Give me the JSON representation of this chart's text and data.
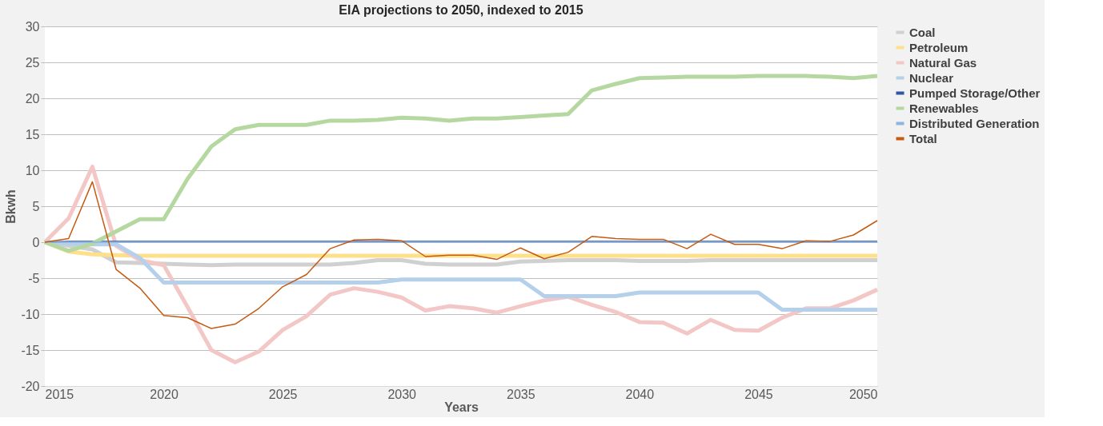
{
  "chart_data": {
    "type": "line",
    "title": "EIA projections to 2050, indexed to 2015",
    "xlabel": "Years",
    "ylabel": "Bkwh",
    "x": [
      2015,
      2016,
      2017,
      2018,
      2019,
      2020,
      2021,
      2022,
      2023,
      2024,
      2025,
      2026,
      2027,
      2028,
      2029,
      2030,
      2031,
      2032,
      2033,
      2034,
      2035,
      2036,
      2037,
      2038,
      2039,
      2040,
      2041,
      2042,
      2043,
      2044,
      2045,
      2046,
      2047,
      2048,
      2049,
      2050
    ],
    "series": [
      {
        "name": "Coal",
        "color": "#d0d0d0",
        "values": [
          0,
          -0.5,
          -1.0,
          -2.8,
          -2.9,
          -3.0,
          -3.1,
          -3.2,
          -3.1,
          -3.1,
          -3.1,
          -3.1,
          -3.1,
          -2.9,
          -2.5,
          -2.5,
          -3.0,
          -3.1,
          -3.1,
          -3.1,
          -2.7,
          -2.6,
          -2.5,
          -2.5,
          -2.5,
          -2.6,
          -2.6,
          -2.6,
          -2.5,
          -2.5,
          -2.5,
          -2.5,
          -2.5,
          -2.5,
          -2.5,
          -2.5
        ]
      },
      {
        "name": "Petroleum",
        "color": "#ffe08a",
        "values": [
          0,
          -1.3,
          -1.7,
          -1.8,
          -1.9,
          -1.9,
          -1.9,
          -1.9,
          -1.9,
          -1.9,
          -1.9,
          -1.9,
          -1.9,
          -1.9,
          -1.9,
          -1.9,
          -1.9,
          -1.9,
          -1.9,
          -1.9,
          -1.9,
          -1.9,
          -1.9,
          -1.9,
          -1.9,
          -1.9,
          -1.9,
          -1.9,
          -1.9,
          -1.9,
          -1.9,
          -1.9,
          -1.9,
          -1.9,
          -1.9,
          -1.9
        ]
      },
      {
        "name": "Natural Gas",
        "color": "#f4c7c7",
        "values": [
          0,
          3.3,
          10.5,
          -0.5,
          -2.5,
          -3.2,
          -9.0,
          -15.0,
          -16.7,
          -15.2,
          -12.2,
          -10.3,
          -7.3,
          -6.4,
          -6.9,
          -7.7,
          -9.5,
          -8.9,
          -9.2,
          -9.8,
          -8.9,
          -8.1,
          -7.6,
          -8.7,
          -9.7,
          -11.1,
          -11.2,
          -12.7,
          -10.8,
          -12.2,
          -12.3,
          -10.5,
          -9.2,
          -9.2,
          -8.1,
          -6.6
        ]
      },
      {
        "name": "Nuclear",
        "color": "#b4d0ea",
        "values": [
          0,
          -0.2,
          -0.3,
          -0.3,
          -2.2,
          -5.6,
          -5.6,
          -5.6,
          -5.6,
          -5.6,
          -5.6,
          -5.6,
          -5.6,
          -5.6,
          -5.6,
          -5.2,
          -5.2,
          -5.2,
          -5.2,
          -5.2,
          -5.2,
          -7.5,
          -7.5,
          -7.5,
          -7.5,
          -7.0,
          -7.0,
          -7.0,
          -7.0,
          -7.0,
          -7.0,
          -9.4,
          -9.4,
          -9.4,
          -9.4,
          -9.4
        ]
      },
      {
        "name": "Pumped Storage/Other",
        "color": "#2f55a4",
        "values": [
          0,
          0.1,
          0.1,
          0.1,
          0.1,
          0.1,
          0.1,
          0.1,
          0.1,
          0.1,
          0.1,
          0.1,
          0.1,
          0.1,
          0.1,
          0.1,
          0.1,
          0.1,
          0.1,
          0.1,
          0.1,
          0.1,
          0.1,
          0.1,
          0.1,
          0.1,
          0.1,
          0.1,
          0.1,
          0.1,
          0.1,
          0.1,
          0.1,
          0.1,
          0.1,
          0.1
        ]
      },
      {
        "name": "Renewables",
        "color": "#b5d8a0",
        "values": [
          0,
          -1.2,
          -0.2,
          1.5,
          3.2,
          3.2,
          8.8,
          13.3,
          15.7,
          16.3,
          16.3,
          16.3,
          16.9,
          16.9,
          17.0,
          17.3,
          17.2,
          16.9,
          17.2,
          17.2,
          17.4,
          17.6,
          17.8,
          21.1,
          22.0,
          22.8,
          22.9,
          23.0,
          23.0,
          23.0,
          23.1,
          23.1,
          23.1,
          23.0,
          22.8,
          23.1
        ]
      },
      {
        "name": "Distributed Generation",
        "color": "#8eb4e3",
        "values": [
          0,
          0,
          0,
          0,
          0,
          0,
          0,
          0,
          0,
          0,
          0,
          0,
          0,
          0,
          0,
          0,
          0,
          0,
          0,
          0,
          0,
          0,
          0,
          0,
          0,
          0,
          0,
          0,
          0,
          0,
          0,
          0,
          0,
          0,
          0,
          0
        ]
      },
      {
        "name": "Total",
        "color": "#c55a11",
        "values": [
          0,
          0.5,
          8.4,
          -3.8,
          -6.4,
          -10.2,
          -10.5,
          -12.0,
          -11.4,
          -9.2,
          -6.2,
          -4.5,
          -0.9,
          0.3,
          0.4,
          0.2,
          -2.0,
          -1.8,
          -1.8,
          -2.4,
          -0.8,
          -2.3,
          -1.4,
          0.8,
          0.5,
          0.4,
          0.4,
          -0.9,
          1.1,
          -0.3,
          -0.3,
          -0.9,
          0.2,
          0.1,
          1.0,
          3.0
        ]
      }
    ],
    "xlim": [
      2015,
      2050
    ],
    "xticks": [
      2015,
      2020,
      2025,
      2030,
      2035,
      2040,
      2045,
      2050
    ],
    "ylim": [
      -20,
      30
    ],
    "yticks": [
      -20,
      -15,
      -10,
      -5,
      0,
      5,
      10,
      15,
      20,
      25,
      30
    ],
    "grid": "y",
    "legend": "right",
    "marker": "none",
    "line_style": "solid"
  }
}
